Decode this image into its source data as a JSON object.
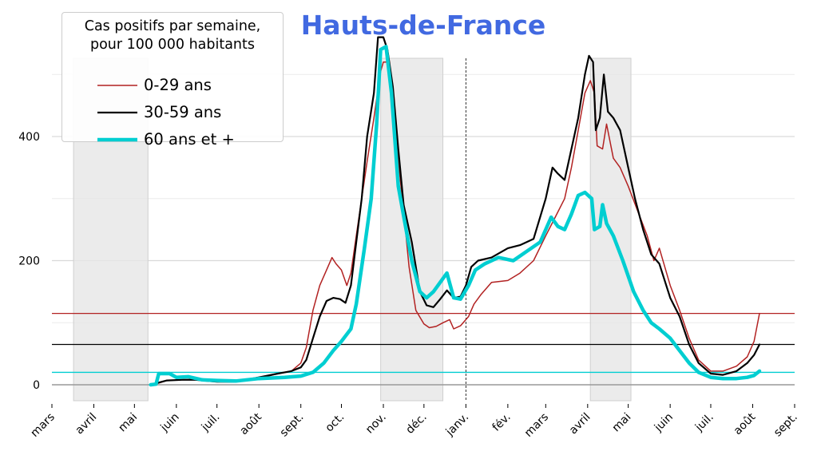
{
  "chart_data": {
    "type": "line",
    "title": "Hauts-de-France",
    "legend_title_line1": "Cas positifs par semaine,",
    "legend_title_line2": "pour 100 000 habitants",
    "legend_position": "top-left",
    "xlabel": "",
    "ylabel": "",
    "x_range": [
      "2020-03-01",
      "2021-09-01"
    ],
    "ylim": [
      -25,
      560
    ],
    "y_ticks": [
      0,
      200,
      400
    ],
    "x_ticks": [
      {
        "date": "2020-03-01",
        "label": "mars"
      },
      {
        "date": "2020-04-01",
        "label": "avril"
      },
      {
        "date": "2020-05-01",
        "label": "mai"
      },
      {
        "date": "2020-06-01",
        "label": "juin"
      },
      {
        "date": "2020-07-01",
        "label": "juil."
      },
      {
        "date": "2020-08-01",
        "label": "août"
      },
      {
        "date": "2020-09-01",
        "label": "sept."
      },
      {
        "date": "2020-10-01",
        "label": "oct."
      },
      {
        "date": "2020-11-01",
        "label": "nov."
      },
      {
        "date": "2020-12-01",
        "label": "déc."
      },
      {
        "date": "2021-01-01",
        "label": "janv."
      },
      {
        "date": "2021-02-01",
        "label": "fév."
      },
      {
        "date": "2021-03-01",
        "label": "mars"
      },
      {
        "date": "2021-04-01",
        "label": "avril"
      },
      {
        "date": "2021-05-01",
        "label": "mai"
      },
      {
        "date": "2021-06-01",
        "label": "juin"
      },
      {
        "date": "2021-07-01",
        "label": "juil."
      },
      {
        "date": "2021-08-01",
        "label": "août"
      },
      {
        "date": "2021-09-01",
        "label": "sept."
      }
    ],
    "grid": true,
    "shaded_periods": [
      {
        "start": "2020-03-17",
        "end": "2020-05-11"
      },
      {
        "start": "2020-10-30",
        "end": "2020-12-15"
      },
      {
        "start": "2021-04-03",
        "end": "2021-05-03"
      }
    ],
    "vertical_marker": "2021-01-01",
    "reference_lines": [
      {
        "value": 115,
        "color": "#b22222"
      },
      {
        "value": 65,
        "color": "#000000"
      },
      {
        "value": 20,
        "color": "#00ced1"
      }
    ],
    "series": [
      {
        "name": "0-29 ans",
        "color": "#b22222",
        "width": 1.5,
        "points": [
          [
            "2020-05-13",
            0
          ],
          [
            "2020-05-18",
            2
          ],
          [
            "2020-05-25",
            7
          ],
          [
            "2020-06-05",
            8
          ],
          [
            "2020-06-15",
            9
          ],
          [
            "2020-07-01",
            6
          ],
          [
            "2020-07-15",
            6
          ],
          [
            "2020-08-01",
            10
          ],
          [
            "2020-08-15",
            18
          ],
          [
            "2020-08-25",
            22
          ],
          [
            "2020-09-01",
            35
          ],
          [
            "2020-09-05",
            60
          ],
          [
            "2020-09-10",
            120
          ],
          [
            "2020-09-15",
            160
          ],
          [
            "2020-09-20",
            185
          ],
          [
            "2020-09-24",
            205
          ],
          [
            "2020-09-27",
            195
          ],
          [
            "2020-10-01",
            185
          ],
          [
            "2020-10-05",
            160
          ],
          [
            "2020-10-08",
            180
          ],
          [
            "2020-10-12",
            240
          ],
          [
            "2020-10-16",
            300
          ],
          [
            "2020-10-20",
            360
          ],
          [
            "2020-10-25",
            430
          ],
          [
            "2020-10-30",
            505
          ],
          [
            "2020-11-01",
            520
          ],
          [
            "2020-11-04",
            520
          ],
          [
            "2020-11-08",
            460
          ],
          [
            "2020-11-12",
            360
          ],
          [
            "2020-11-16",
            280
          ],
          [
            "2020-11-20",
            190
          ],
          [
            "2020-11-25",
            120
          ],
          [
            "2020-12-01",
            98
          ],
          [
            "2020-12-05",
            92
          ],
          [
            "2020-12-10",
            94
          ],
          [
            "2020-12-15",
            100
          ],
          [
            "2020-12-20",
            105
          ],
          [
            "2020-12-23",
            90
          ],
          [
            "2020-12-28",
            95
          ],
          [
            "2021-01-03",
            110
          ],
          [
            "2021-01-07",
            130
          ],
          [
            "2021-01-12",
            145
          ],
          [
            "2021-01-20",
            165
          ],
          [
            "2021-02-01",
            168
          ],
          [
            "2021-02-10",
            180
          ],
          [
            "2021-02-20",
            200
          ],
          [
            "2021-03-01",
            240
          ],
          [
            "2021-03-08",
            270
          ],
          [
            "2021-03-15",
            300
          ],
          [
            "2021-03-20",
            350
          ],
          [
            "2021-03-25",
            410
          ],
          [
            "2021-03-30",
            470
          ],
          [
            "2021-04-03",
            490
          ],
          [
            "2021-04-06",
            470
          ],
          [
            "2021-04-08",
            385
          ],
          [
            "2021-04-12",
            380
          ],
          [
            "2021-04-15",
            420
          ],
          [
            "2021-04-20",
            365
          ],
          [
            "2021-04-25",
            350
          ],
          [
            "2021-05-01",
            320
          ],
          [
            "2021-05-08",
            280
          ],
          [
            "2021-05-15",
            240
          ],
          [
            "2021-05-20",
            200
          ],
          [
            "2021-05-24",
            220
          ],
          [
            "2021-06-01",
            160
          ],
          [
            "2021-06-08",
            120
          ],
          [
            "2021-06-15",
            75
          ],
          [
            "2021-06-22",
            40
          ],
          [
            "2021-07-01",
            22
          ],
          [
            "2021-07-10",
            22
          ],
          [
            "2021-07-20",
            30
          ],
          [
            "2021-07-28",
            45
          ],
          [
            "2021-08-02",
            70
          ],
          [
            "2021-08-06",
            115
          ]
        ]
      },
      {
        "name": "30-59 ans",
        "color": "#000000",
        "width": 2.2,
        "points": [
          [
            "2020-05-13",
            0
          ],
          [
            "2020-05-18",
            3
          ],
          [
            "2020-05-25",
            7
          ],
          [
            "2020-06-05",
            8
          ],
          [
            "2020-06-15",
            8
          ],
          [
            "2020-07-01",
            5
          ],
          [
            "2020-07-15",
            5
          ],
          [
            "2020-08-01",
            12
          ],
          [
            "2020-08-15",
            18
          ],
          [
            "2020-08-25",
            22
          ],
          [
            "2020-09-01",
            28
          ],
          [
            "2020-09-05",
            40
          ],
          [
            "2020-09-10",
            75
          ],
          [
            "2020-09-15",
            110
          ],
          [
            "2020-09-20",
            135
          ],
          [
            "2020-09-25",
            140
          ],
          [
            "2020-09-30",
            138
          ],
          [
            "2020-10-04",
            132
          ],
          [
            "2020-10-08",
            160
          ],
          [
            "2020-10-12",
            230
          ],
          [
            "2020-10-16",
            300
          ],
          [
            "2020-10-20",
            400
          ],
          [
            "2020-10-25",
            470
          ],
          [
            "2020-10-28",
            560
          ],
          [
            "2020-11-01",
            560
          ],
          [
            "2020-11-04",
            540
          ],
          [
            "2020-11-08",
            480
          ],
          [
            "2020-11-12",
            380
          ],
          [
            "2020-11-16",
            290
          ],
          [
            "2020-11-22",
            230
          ],
          [
            "2020-11-28",
            150
          ],
          [
            "2020-12-03",
            128
          ],
          [
            "2020-12-08",
            125
          ],
          [
            "2020-12-13",
            138
          ],
          [
            "2020-12-18",
            152
          ],
          [
            "2020-12-23",
            140
          ],
          [
            "2020-12-28",
            142
          ],
          [
            "2021-01-01",
            160
          ],
          [
            "2021-01-05",
            190
          ],
          [
            "2021-01-10",
            200
          ],
          [
            "2021-01-20",
            205
          ],
          [
            "2021-02-01",
            220
          ],
          [
            "2021-02-10",
            225
          ],
          [
            "2021-02-20",
            235
          ],
          [
            "2021-03-01",
            300
          ],
          [
            "2021-03-06",
            350
          ],
          [
            "2021-03-10",
            340
          ],
          [
            "2021-03-15",
            330
          ],
          [
            "2021-03-20",
            380
          ],
          [
            "2021-03-25",
            430
          ],
          [
            "2021-03-30",
            500
          ],
          [
            "2021-04-02",
            530
          ],
          [
            "2021-04-05",
            520
          ],
          [
            "2021-04-07",
            410
          ],
          [
            "2021-04-10",
            430
          ],
          [
            "2021-04-13",
            500
          ],
          [
            "2021-04-16",
            440
          ],
          [
            "2021-04-20",
            430
          ],
          [
            "2021-04-25",
            410
          ],
          [
            "2021-05-01",
            350
          ],
          [
            "2021-05-06",
            300
          ],
          [
            "2021-05-12",
            250
          ],
          [
            "2021-05-18",
            210
          ],
          [
            "2021-05-24",
            195
          ],
          [
            "2021-06-01",
            140
          ],
          [
            "2021-06-08",
            110
          ],
          [
            "2021-06-15",
            65
          ],
          [
            "2021-06-22",
            35
          ],
          [
            "2021-07-01",
            18
          ],
          [
            "2021-07-10",
            16
          ],
          [
            "2021-07-20",
            22
          ],
          [
            "2021-07-28",
            35
          ],
          [
            "2021-08-02",
            48
          ],
          [
            "2021-08-06",
            65
          ]
        ]
      },
      {
        "name": "60 ans et +",
        "color": "#00ced1",
        "width": 4.5,
        "points": [
          [
            "2020-05-13",
            0
          ],
          [
            "2020-05-17",
            1
          ],
          [
            "2020-05-19",
            18
          ],
          [
            "2020-05-27",
            18
          ],
          [
            "2020-06-01",
            12
          ],
          [
            "2020-06-10",
            13
          ],
          [
            "2020-06-20",
            8
          ],
          [
            "2020-07-01",
            7
          ],
          [
            "2020-07-15",
            6
          ],
          [
            "2020-08-01",
            10
          ],
          [
            "2020-08-20",
            12
          ],
          [
            "2020-09-01",
            14
          ],
          [
            "2020-09-10",
            20
          ],
          [
            "2020-09-18",
            35
          ],
          [
            "2020-09-25",
            55
          ],
          [
            "2020-10-01",
            70
          ],
          [
            "2020-10-08",
            90
          ],
          [
            "2020-10-12",
            130
          ],
          [
            "2020-10-18",
            220
          ],
          [
            "2020-10-23",
            300
          ],
          [
            "2020-10-27",
            420
          ],
          [
            "2020-10-30",
            540
          ],
          [
            "2020-11-03",
            545
          ],
          [
            "2020-11-07",
            470
          ],
          [
            "2020-11-12",
            320
          ],
          [
            "2020-11-17",
            260
          ],
          [
            "2020-11-22",
            200
          ],
          [
            "2020-11-28",
            150
          ],
          [
            "2020-12-03",
            140
          ],
          [
            "2020-12-08",
            150
          ],
          [
            "2020-12-13",
            165
          ],
          [
            "2020-12-18",
            180
          ],
          [
            "2020-12-23",
            140
          ],
          [
            "2020-12-28",
            138
          ],
          [
            "2021-01-03",
            160
          ],
          [
            "2021-01-08",
            185
          ],
          [
            "2021-01-15",
            195
          ],
          [
            "2021-01-25",
            205
          ],
          [
            "2021-02-05",
            200
          ],
          [
            "2021-02-15",
            215
          ],
          [
            "2021-02-25",
            230
          ],
          [
            "2021-03-05",
            270
          ],
          [
            "2021-03-10",
            255
          ],
          [
            "2021-03-15",
            250
          ],
          [
            "2021-03-20",
            275
          ],
          [
            "2021-03-25",
            305
          ],
          [
            "2021-03-30",
            310
          ],
          [
            "2021-04-04",
            300
          ],
          [
            "2021-04-06",
            250
          ],
          [
            "2021-04-10",
            255
          ],
          [
            "2021-04-12",
            290
          ],
          [
            "2021-04-15",
            260
          ],
          [
            "2021-04-20",
            240
          ],
          [
            "2021-04-27",
            200
          ],
          [
            "2021-05-05",
            150
          ],
          [
            "2021-05-12",
            120
          ],
          [
            "2021-05-18",
            100
          ],
          [
            "2021-05-24",
            90
          ],
          [
            "2021-06-01",
            75
          ],
          [
            "2021-06-08",
            55
          ],
          [
            "2021-06-15",
            35
          ],
          [
            "2021-06-22",
            20
          ],
          [
            "2021-07-01",
            12
          ],
          [
            "2021-07-10",
            10
          ],
          [
            "2021-07-20",
            10
          ],
          [
            "2021-07-28",
            12
          ],
          [
            "2021-08-02",
            15
          ],
          [
            "2021-08-06",
            22
          ]
        ]
      }
    ]
  }
}
